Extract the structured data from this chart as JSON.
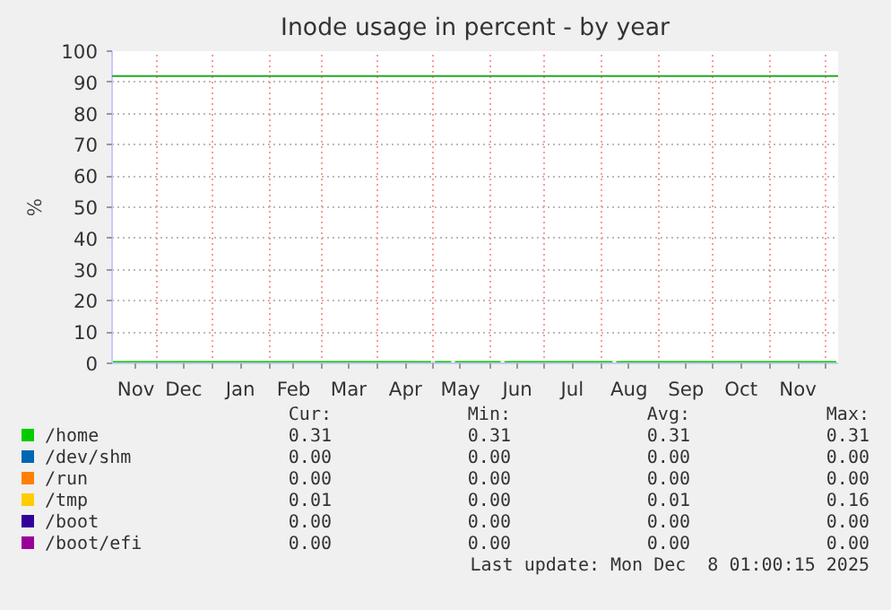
{
  "chart_data": {
    "type": "line",
    "title": "Inode usage in percent - by year",
    "ylabel": "%",
    "x": [
      "2024-11-07",
      "2024-12-01",
      "2025-01-01",
      "2025-02-01",
      "2025-03-01",
      "2025-04-01",
      "2025-04-30",
      "2025-05-01",
      "2025-05-02",
      "2025-05-11",
      "2025-05-12",
      "2025-05-13",
      "2025-06-07",
      "2025-06-08",
      "2025-06-09",
      "2025-07-01",
      "2025-08-07",
      "2025-08-08",
      "2025-08-09",
      "2025-09-01",
      "2025-10-01",
      "2025-11-01",
      "2025-12-01",
      "2025-12-07"
    ],
    "series": [
      {
        "name": "/home",
        "color": "#00cc00",
        "values": [
          0.31,
          0.31,
          0.31,
          0.31,
          0.31,
          0.31,
          0.31,
          null,
          0.31,
          0.31,
          null,
          0.31,
          0.31,
          null,
          0.31,
          0.31,
          0.31,
          null,
          0.31,
          0.31,
          0.31,
          0.31,
          0.31,
          0.31
        ]
      },
      {
        "name": "/dev/shm",
        "color": "#0066b3",
        "values": [
          null,
          null,
          null,
          null,
          null,
          null,
          null,
          null,
          null,
          null,
          null,
          null,
          null,
          null,
          null,
          null,
          null,
          null,
          null,
          null,
          null,
          null,
          null,
          null
        ]
      },
      {
        "name": "/run",
        "color": "#ff8000",
        "values": [
          null,
          null,
          null,
          null,
          null,
          null,
          null,
          null,
          null,
          null,
          null,
          null,
          null,
          null,
          null,
          null,
          null,
          null,
          null,
          null,
          null,
          null,
          null,
          null
        ]
      },
      {
        "name": "/tmp",
        "color": "#ffcc00",
        "values": [
          null,
          null,
          null,
          null,
          null,
          null,
          null,
          null,
          null,
          null,
          null,
          null,
          null,
          null,
          null,
          null,
          null,
          null,
          null,
          null,
          null,
          null,
          null,
          null
        ]
      },
      {
        "name": "/boot",
        "color": "#330099",
        "values": [
          null,
          null,
          null,
          null,
          null,
          null,
          null,
          null,
          null,
          null,
          null,
          null,
          null,
          null,
          null,
          null,
          null,
          null,
          null,
          null,
          null,
          null,
          null,
          null
        ]
      },
      {
        "name": "/boot/efi",
        "color": "#990099",
        "values": [
          null,
          null,
          null,
          null,
          null,
          null,
          null,
          null,
          null,
          null,
          null,
          null,
          null,
          null,
          null,
          null,
          null,
          null,
          null,
          null,
          null,
          null,
          null,
          null
        ]
      }
    ],
    "xlim": [
      "2024-11-07",
      "2025-12-08"
    ],
    "xticks": [
      {
        "value": "2024-11-20",
        "label": "Nov"
      },
      {
        "value": "2024-12-01",
        "label": null
      },
      {
        "value": "2024-12-16",
        "label": "Dec"
      },
      {
        "value": "2025-01-01",
        "label": null
      },
      {
        "value": "2025-01-16",
        "label": "Jan"
      },
      {
        "value": "2025-02-01",
        "label": null
      },
      {
        "value": "2025-02-14",
        "label": "Feb"
      },
      {
        "value": "2025-03-01",
        "label": null
      },
      {
        "value": "2025-03-16",
        "label": "Mar"
      },
      {
        "value": "2025-04-01",
        "label": null
      },
      {
        "value": "2025-04-16",
        "label": "Apr"
      },
      {
        "value": "2025-05-01",
        "label": null
      },
      {
        "value": "2025-05-16",
        "label": "May"
      },
      {
        "value": "2025-06-01",
        "label": null
      },
      {
        "value": "2025-06-16",
        "label": "Jun"
      },
      {
        "value": "2025-07-01",
        "label": null
      },
      {
        "value": "2025-07-16",
        "label": "Jul"
      },
      {
        "value": "2025-08-01",
        "label": null
      },
      {
        "value": "2025-08-16",
        "label": "Aug"
      },
      {
        "value": "2025-09-01",
        "label": null
      },
      {
        "value": "2025-09-16",
        "label": "Sep"
      },
      {
        "value": "2025-10-01",
        "label": null
      },
      {
        "value": "2025-10-16",
        "label": "Oct"
      },
      {
        "value": "2025-11-01",
        "label": null
      },
      {
        "value": "2025-11-16",
        "label": "Nov"
      },
      {
        "value": "2025-12-01",
        "label": null
      }
    ],
    "ylim": [
      0,
      100
    ],
    "yticks": [
      0,
      10,
      20,
      30,
      40,
      50,
      60,
      70,
      80,
      90,
      100
    ],
    "ref_lines": [
      {
        "axis": "y",
        "value": 92,
        "color": "#22aa22"
      }
    ],
    "grid": true,
    "legend": "bottom",
    "annotations": [
      "Cur:",
      "Min:",
      "Avg:",
      "Max:",
      "0.31",
      "0.31",
      "0.31",
      "0.31",
      "0.00",
      "0.00",
      "0.00",
      "0.00",
      "0.00",
      "0.00",
      "0.00",
      "0.00",
      "0.01",
      "0.00",
      "0.01",
      "0.16",
      "0.00",
      "0.00",
      "0.00",
      "0.00",
      "0.00",
      "0.00",
      "0.00",
      "0.00",
      "Last update: Mon Dec  8 01:00:15 2025"
    ]
  }
}
